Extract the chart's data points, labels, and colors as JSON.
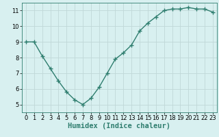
{
  "xlabel": "Humidex (Indice chaleur)",
  "x": [
    0,
    1,
    2,
    3,
    4,
    5,
    6,
    7,
    8,
    9,
    10,
    11,
    12,
    13,
    14,
    15,
    16,
    17,
    18,
    19,
    20,
    21,
    22,
    23
  ],
  "y": [
    9.0,
    9.0,
    8.1,
    7.3,
    6.5,
    5.8,
    5.3,
    5.0,
    5.4,
    6.1,
    7.0,
    7.9,
    8.3,
    8.8,
    9.7,
    10.2,
    10.6,
    11.0,
    11.1,
    11.1,
    11.2,
    11.1,
    11.1,
    10.9
  ],
  "line_color": "#2e7d6e",
  "marker": "+",
  "marker_size": 4,
  "background_color": "#d8f0f0",
  "grid_color": "#c0d8d8",
  "ylim": [
    4.5,
    11.5
  ],
  "xlim": [
    -0.5,
    23.5
  ],
  "yticks": [
    5,
    6,
    7,
    8,
    9,
    10,
    11
  ],
  "xticks": [
    0,
    1,
    2,
    3,
    4,
    5,
    6,
    7,
    8,
    9,
    10,
    11,
    12,
    13,
    14,
    15,
    16,
    17,
    18,
    19,
    20,
    21,
    22,
    23
  ],
  "tick_fontsize": 6,
  "label_fontsize": 7.5,
  "line_width": 1.0
}
